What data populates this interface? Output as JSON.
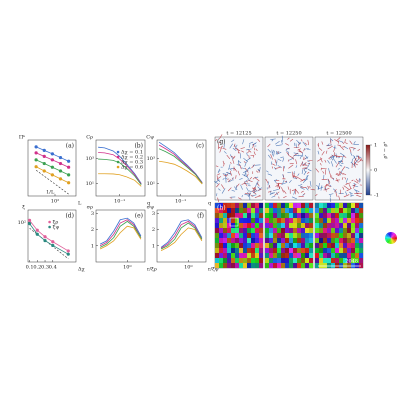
{
  "chart_data": [
    {
      "type": "line",
      "label": "(a)",
      "markers": true,
      "xlog": true,
      "ylog": true,
      "xlabel": "L",
      "ylabel": "Πᵏ",
      "x": [
        20,
        40,
        80,
        160,
        320
      ],
      "xlim": [
        10,
        600
      ],
      "ylim": [
        0.003,
        2
      ],
      "xticks": [
        {
          "value": 100,
          "label": "10²"
        }
      ],
      "series": [
        {
          "color": "#3a6fd0",
          "values": [
            0.9,
            0.6,
            0.4,
            0.26,
            0.17
          ]
        },
        {
          "color": "#d0308a",
          "values": [
            0.45,
            0.3,
            0.2,
            0.13,
            0.085
          ]
        },
        {
          "color": "#3aa050",
          "values": [
            0.2,
            0.13,
            0.085,
            0.055,
            0.035
          ]
        },
        {
          "color": "#e0a020",
          "values": [
            0.09,
            0.055,
            0.035,
            0.022,
            0.014
          ]
        }
      ],
      "reference": {
        "label": "1/L",
        "x": [
          20,
          320
        ],
        "values": [
          0.06,
          0.00375
        ]
      }
    },
    {
      "type": "line",
      "label": "(b)",
      "xlog": true,
      "ylog": true,
      "xlabel": "q",
      "ylabel": "Cρ",
      "legend": "upper right",
      "x": [
        0.01,
        0.02,
        0.05,
        0.1,
        0.2,
        0.5,
        1
      ],
      "xlim": [
        0.008,
        1.5
      ],
      "ylim": [
        1,
        30000
      ],
      "xticks": [
        {
          "value": 0.1,
          "label": "10⁻¹"
        }
      ],
      "yticks": [
        {
          "value": 10,
          "label": "10¹"
        },
        {
          "value": 1000,
          "label": "10³"
        }
      ],
      "series": [
        {
          "name": "Δχ = 0.1",
          "color": "#3a6fd0",
          "values": [
            8000,
            7000,
            4000,
            1500,
            400,
            60,
            10
          ]
        },
        {
          "name": "Δχ = 0.2",
          "color": "#d0308a",
          "values": [
            3000,
            2800,
            2000,
            900,
            300,
            50,
            9
          ]
        },
        {
          "name": "Δχ = 0.3",
          "color": "#3aa050",
          "values": [
            900,
            850,
            700,
            450,
            180,
            40,
            8
          ]
        },
        {
          "name": "Δχ = 0.6",
          "color": "#e0a020",
          "values": [
            60,
            60,
            58,
            50,
            35,
            18,
            6
          ]
        }
      ]
    },
    {
      "type": "line",
      "label": "(c)",
      "xlog": true,
      "ylog": true,
      "xlabel": "q",
      "ylabel": "Cψ",
      "x": [
        0.01,
        0.02,
        0.05,
        0.1,
        0.2,
        0.5,
        1
      ],
      "xlim": [
        0.008,
        1.5
      ],
      "ylim": [
        1,
        30000
      ],
      "xticks": [
        {
          "value": 0.1,
          "label": "10⁻¹"
        }
      ],
      "yticks": [
        {
          "value": 10,
          "label": "10¹"
        },
        {
          "value": 1000,
          "label": "10³"
        }
      ],
      "series": [
        {
          "color": "#3a6fd0",
          "values": [
            20000,
            9000,
            3000,
            900,
            300,
            60,
            12
          ]
        },
        {
          "color": "#d0308a",
          "values": [
            12000,
            6000,
            2200,
            700,
            250,
            55,
            11
          ]
        },
        {
          "color": "#3aa050",
          "values": [
            6000,
            3500,
            1500,
            550,
            200,
            50,
            10
          ]
        },
        {
          "color": "#e0a020",
          "values": [
            600,
            500,
            350,
            200,
            100,
            35,
            9
          ]
        }
      ]
    },
    {
      "type": "line",
      "label": "(d)",
      "markers": true,
      "ylog": true,
      "xlabel": "Δχ",
      "ylabel": "ξ",
      "legend": "upper right",
      "x": [
        0.1,
        0.2,
        0.3,
        0.4,
        0.6
      ],
      "xlim": [
        0.08,
        0.7
      ],
      "ylim": [
        3,
        300
      ],
      "xticks": [
        0.1,
        0.2,
        0.3,
        0.4
      ],
      "yticks": [
        {
          "value": 100,
          "label": "10²"
        }
      ],
      "series": [
        {
          "name": "ξρ",
          "color": "#e0609a",
          "values": [
            120,
            50,
            28,
            18,
            8
          ]
        },
        {
          "name": "ξψ",
          "color": "#2a8a80",
          "values": [
            90,
            35,
            20,
            13,
            6
          ]
        }
      ],
      "reference": {
        "x": [
          0.1,
          0.6
        ],
        "values": [
          60,
          4
        ]
      }
    },
    {
      "type": "line",
      "label": "(e)",
      "xlog": true,
      "xlabel": "r/ξρ",
      "ylabel": "σρ",
      "x": [
        0.01,
        0.03,
        0.1,
        0.3,
        1,
        3,
        10
      ],
      "xlim": [
        0.005,
        20
      ],
      "ylim": [
        0,
        3.2
      ],
      "xticks": [
        {
          "value": 1,
          "label": "10⁰"
        }
      ],
      "yticks": [
        1,
        2,
        3
      ],
      "series": [
        {
          "color": "#3a6fd0",
          "values": [
            1.1,
            1.3,
            1.9,
            2.6,
            2.7,
            2.4,
            1.6
          ]
        },
        {
          "color": "#d0308a",
          "values": [
            1.0,
            1.2,
            1.7,
            2.4,
            2.6,
            2.3,
            1.5
          ]
        },
        {
          "color": "#3aa050",
          "values": [
            0.9,
            1.1,
            1.5,
            2.2,
            2.5,
            2.2,
            1.5
          ]
        },
        {
          "color": "#e0a020",
          "values": [
            0.8,
            1.0,
            1.3,
            1.8,
            2.2,
            2.1,
            1.4
          ]
        }
      ]
    },
    {
      "type": "line",
      "label": "(f)",
      "xlog": true,
      "xlabel": "r/ξψ",
      "ylabel": "σψ",
      "x": [
        0.01,
        0.03,
        0.1,
        0.3,
        1,
        3,
        10
      ],
      "xlim": [
        0.005,
        20
      ],
      "ylim": [
        0,
        3.2
      ],
      "xticks": [
        {
          "value": 1,
          "label": "10⁰"
        }
      ],
      "yticks": [
        1,
        2,
        3
      ],
      "series": [
        {
          "color": "#3a6fd0",
          "values": [
            0.9,
            1.2,
            1.8,
            2.5,
            2.6,
            2.3,
            1.5
          ]
        },
        {
          "color": "#d0308a",
          "values": [
            0.85,
            1.1,
            1.6,
            2.3,
            2.5,
            2.2,
            1.4
          ]
        },
        {
          "color": "#3aa050",
          "values": [
            0.8,
            1.0,
            1.4,
            2.1,
            2.4,
            2.1,
            1.4
          ]
        },
        {
          "color": "#e0a020",
          "values": [
            0.7,
            0.9,
            1.2,
            1.7,
            2.1,
            2.0,
            1.3
          ]
        }
      ]
    }
  ],
  "images": {
    "g": {
      "label": "(g)",
      "times": [
        "t = 12125",
        "t = 12250",
        "t = 12500"
      ],
      "colorbar_label": "ρˢ − ρᵃ",
      "colorbar_ticks": [
        1,
        0,
        -1
      ],
      "colorbar_lim": [
        -1,
        1
      ]
    },
    "h": {
      "label": "(h)",
      "scale_label": "2048"
    }
  }
}
